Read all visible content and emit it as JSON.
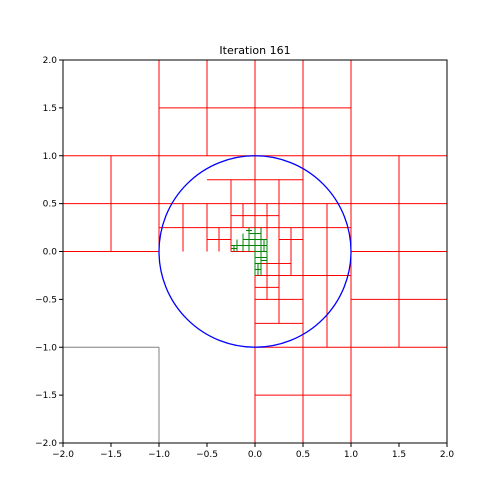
{
  "chart_data": {
    "type": "line",
    "title": "Iteration 161",
    "xlabel": "",
    "ylabel": "",
    "xlim": [
      -2.0,
      2.0
    ],
    "ylim": [
      -2.0,
      2.0
    ],
    "x_ticks": [
      -2.0,
      -1.5,
      -1.0,
      -0.5,
      0.0,
      0.5,
      1.0,
      1.5,
      2.0
    ],
    "y_ticks": [
      -2.0,
      -1.5,
      -1.0,
      -0.5,
      0.0,
      0.5,
      1.0,
      1.5,
      2.0
    ],
    "x_tick_labels": [
      "−2.0",
      "−1.5",
      "−1.0",
      "−0.5",
      "0.0",
      "0.5",
      "1.0",
      "1.5",
      "2.0"
    ],
    "y_tick_labels": [
      "−2.0",
      "−1.5",
      "−1.0",
      "−0.5",
      "0.0",
      "0.5",
      "1.0",
      "1.5",
      "2.0"
    ],
    "grid": false,
    "legend": "none",
    "colors": {
      "rejected_cells": "#ff0000",
      "accepted_cells": "#008000",
      "circle": "#0000ff",
      "partial_grid": "#808080",
      "axes": "#000000"
    },
    "circle": {
      "center": [
        0.0,
        0.0
      ],
      "radius": 1.0
    },
    "gray_lines": [
      {
        "x1": -1.0,
        "y1": -2.0,
        "x2": -1.0,
        "y2": -1.0
      },
      {
        "x1": -2.0,
        "y1": -1.0,
        "x2": -1.0,
        "y2": -1.0
      }
    ],
    "red_lines": [
      {
        "x1": -1.0,
        "y1": 2.0,
        "x2": -1.0,
        "y2": 0.0
      },
      {
        "x1": -0.5,
        "y1": 2.0,
        "x2": -0.5,
        "y2": 1.0
      },
      {
        "x1": 0.0,
        "y1": 2.0,
        "x2": 0.0,
        "y2": 0.0
      },
      {
        "x1": 0.0,
        "y1": 0.0,
        "x2": 0.0,
        "y2": -2.0
      },
      {
        "x1": 0.5,
        "y1": 2.0,
        "x2": 0.5,
        "y2": -2.0
      },
      {
        "x1": 1.0,
        "y1": 2.0,
        "x2": 1.0,
        "y2": -2.0
      },
      {
        "x1": -1.5,
        "y1": 1.0,
        "x2": -1.5,
        "y2": 0.0
      },
      {
        "x1": 1.5,
        "y1": 1.0,
        "x2": 1.5,
        "y2": -1.0
      },
      {
        "x1": -1.0,
        "y1": 1.5,
        "x2": 1.0,
        "y2": 1.5
      },
      {
        "x1": -2.0,
        "y1": 1.0,
        "x2": 2.0,
        "y2": 1.0
      },
      {
        "x1": -2.0,
        "y1": 0.5,
        "x2": 2.0,
        "y2": 0.5
      },
      {
        "x1": -2.0,
        "y1": 0.0,
        "x2": -1.0,
        "y2": 0.0
      },
      {
        "x1": 1.0,
        "y1": 0.0,
        "x2": 2.0,
        "y2": 0.0
      },
      {
        "x1": 1.0,
        "y1": -0.5,
        "x2": 2.0,
        "y2": -0.5
      },
      {
        "x1": 0.0,
        "y1": -1.0,
        "x2": 2.0,
        "y2": -1.0
      },
      {
        "x1": 0.0,
        "y1": -1.5,
        "x2": 1.0,
        "y2": -1.5
      },
      {
        "x1": -0.5,
        "y1": 0.75,
        "x2": 0.5,
        "y2": 0.75
      },
      {
        "x1": -0.75,
        "y1": 0.5,
        "x2": -0.75,
        "y2": 0.0
      },
      {
        "x1": -0.5,
        "y1": 0.5,
        "x2": -0.5,
        "y2": 0.0
      },
      {
        "x1": -0.25,
        "y1": 0.75,
        "x2": -0.25,
        "y2": 0.0
      },
      {
        "x1": 0.25,
        "y1": 0.75,
        "x2": 0.25,
        "y2": -0.75
      },
      {
        "x1": 0.75,
        "y1": 0.5,
        "x2": 0.75,
        "y2": -1.0
      },
      {
        "x1": -1.0,
        "y1": 0.25,
        "x2": 1.0,
        "y2": 0.25
      },
      {
        "x1": -0.5,
        "y1": 0.125,
        "x2": -0.25,
        "y2": 0.125
      },
      {
        "x1": -0.375,
        "y1": 0.25,
        "x2": -0.375,
        "y2": 0.0
      },
      {
        "x1": -0.25,
        "y1": 0.375,
        "x2": 0.25,
        "y2": 0.375
      },
      {
        "x1": -0.125,
        "y1": 0.5,
        "x2": -0.125,
        "y2": 0.25
      },
      {
        "x1": 0.125,
        "y1": 0.5,
        "x2": 0.125,
        "y2": -0.5
      },
      {
        "x1": 0.375,
        "y1": 0.25,
        "x2": 0.375,
        "y2": -0.25
      },
      {
        "x1": -0.25,
        "y1": 0.0,
        "x2": 0.0,
        "y2": 0.0
      },
      {
        "x1": 0.25,
        "y1": 0.125,
        "x2": 0.5,
        "y2": 0.125
      },
      {
        "x1": 0.25,
        "y1": -0.125,
        "x2": 0.375,
        "y2": -0.125
      },
      {
        "x1": 0.0,
        "y1": -0.125,
        "x2": 0.25,
        "y2": -0.125
      },
      {
        "x1": 0.0,
        "y1": -0.25,
        "x2": 1.0,
        "y2": -0.25
      },
      {
        "x1": 0.0,
        "y1": -0.375,
        "x2": 0.25,
        "y2": -0.375
      },
      {
        "x1": 0.0,
        "y1": -0.5,
        "x2": 0.5,
        "y2": -0.5
      },
      {
        "x1": 0.0,
        "y1": -0.75,
        "x2": 0.5,
        "y2": -0.75
      }
    ],
    "green_lines": [
      {
        "x1": -0.1875,
        "y1": 0.125,
        "x2": -0.1875,
        "y2": 0.0
      },
      {
        "x1": -0.125,
        "y1": 0.1875,
        "x2": -0.125,
        "y2": 0.0
      },
      {
        "x1": -0.0625,
        "y1": 0.25,
        "x2": -0.0625,
        "y2": 0.0
      },
      {
        "x1": 0.0,
        "y1": 0.25,
        "x2": 0.0,
        "y2": -0.25
      },
      {
        "x1": 0.0625,
        "y1": 0.25,
        "x2": 0.0625,
        "y2": -0.25
      },
      {
        "x1": 0.125,
        "y1": 0.125,
        "x2": 0.125,
        "y2": -0.125
      },
      {
        "x1": -0.25,
        "y1": 0.0625,
        "x2": 0.125,
        "y2": 0.0625
      },
      {
        "x1": -0.125,
        "y1": 0.125,
        "x2": 0.125,
        "y2": 0.125
      },
      {
        "x1": -0.0625,
        "y1": 0.1875,
        "x2": 0.0625,
        "y2": 0.1875
      },
      {
        "x1": 0.0,
        "y1": 0.0,
        "x2": 0.125,
        "y2": 0.0
      },
      {
        "x1": 0.0,
        "y1": -0.0625,
        "x2": 0.125,
        "y2": -0.0625
      },
      {
        "x1": 0.0,
        "y1": -0.125,
        "x2": 0.0625,
        "y2": -0.125
      },
      {
        "x1": 0.0,
        "y1": -0.1875,
        "x2": 0.0625,
        "y2": -0.1875
      },
      {
        "x1": -0.25,
        "y1": 0.03125,
        "x2": -0.1875,
        "y2": 0.03125
      },
      {
        "x1": -0.21875,
        "y1": 0.0625,
        "x2": -0.21875,
        "y2": 0.0
      },
      {
        "x1": -0.09375,
        "y1": 0.21875,
        "x2": -0.03125,
        "y2": 0.21875
      },
      {
        "x1": 0.03125,
        "y1": -0.25,
        "x2": 0.03125,
        "y2": -0.125
      },
      {
        "x1": 0.09375,
        "y1": 0.125,
        "x2": 0.09375,
        "y2": 0.0
      },
      {
        "x1": 0.0625,
        "y1": -0.09375,
        "x2": 0.125,
        "y2": -0.09375
      }
    ]
  }
}
